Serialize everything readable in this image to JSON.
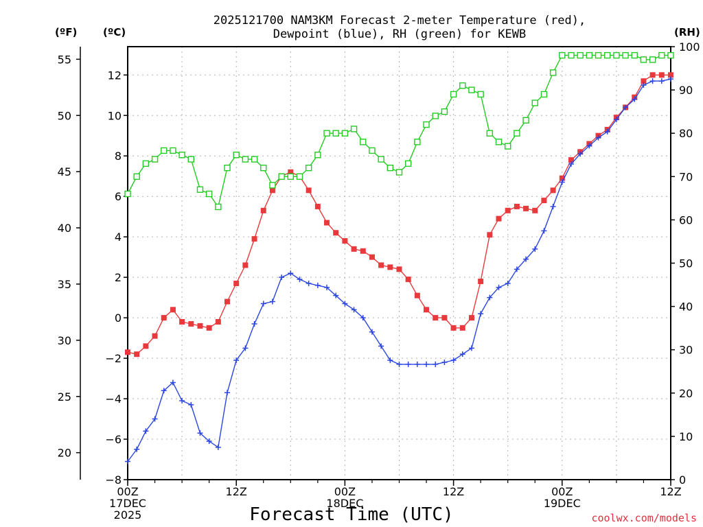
{
  "chart_data": {
    "type": "line",
    "title_line1": "2025121700 NAM3KM Forecast 2-meter Temperature (red),",
    "title_line2": "Dewpoint (blue), RH (green) for KEWB",
    "xlabel": "Forecast Time (UTC)",
    "credit": "coolwx.com/models",
    "units": {
      "fahrenheit": "(ºF)",
      "celsius": "(ºC)",
      "rh": "(RH)"
    },
    "ylim_c": [
      -8,
      13.4
    ],
    "ylim_rh": [
      0,
      100
    ],
    "x_range_hours": [
      0,
      60
    ],
    "x_ticks": [
      {
        "hour": 0,
        "l1": "00Z",
        "l2": "17DEC",
        "l3": "2025"
      },
      {
        "hour": 12,
        "l1": "12Z",
        "l2": "",
        "l3": ""
      },
      {
        "hour": 24,
        "l1": "00Z",
        "l2": "18DEC",
        "l3": ""
      },
      {
        "hour": 36,
        "l1": "12Z",
        "l2": "",
        "l3": ""
      },
      {
        "hour": 48,
        "l1": "00Z",
        "l2": "19DEC",
        "l3": ""
      },
      {
        "hour": 60,
        "l1": "12Z",
        "l2": "",
        "l3": ""
      }
    ],
    "y_ticks_c": [
      -8,
      -6,
      -4,
      -2,
      0,
      2,
      4,
      6,
      8,
      10,
      12
    ],
    "y_ticks_f": [
      20,
      25,
      30,
      35,
      40,
      45,
      50,
      55
    ],
    "y_ticks_rh": [
      0,
      10,
      20,
      30,
      40,
      50,
      60,
      70,
      80,
      90,
      100
    ],
    "colors": {
      "temperature": "#e8393c",
      "dewpoint": "#2b45e0",
      "rh": "#22cc22",
      "grid": "#b0b0b0"
    },
    "series": [
      {
        "name": "Temperature",
        "unit": "C",
        "x": [
          0,
          1,
          2,
          3,
          4,
          5,
          6,
          7,
          8,
          9,
          10,
          11,
          12,
          13,
          14,
          15,
          16,
          17,
          18,
          19,
          20,
          21,
          22,
          23,
          24,
          25,
          26,
          27,
          28,
          29,
          30,
          31,
          32,
          33,
          34,
          35,
          36,
          37,
          38,
          39,
          40,
          41,
          42,
          43,
          44,
          45,
          46,
          47,
          48,
          49,
          50,
          51,
          52,
          53,
          54,
          55,
          56,
          57,
          58,
          59,
          60
        ],
        "values": [
          -1.7,
          -1.8,
          -1.4,
          -0.9,
          0.0,
          0.4,
          -0.2,
          -0.3,
          -0.4,
          -0.5,
          -0.2,
          0.8,
          1.7,
          2.6,
          3.9,
          5.3,
          6.3,
          7.0,
          7.2,
          7.0,
          6.3,
          5.5,
          4.7,
          4.2,
          3.8,
          3.4,
          3.3,
          3.0,
          2.6,
          2.5,
          2.4,
          1.9,
          1.1,
          0.4,
          0.0,
          0.0,
          -0.5,
          -0.5,
          0.0,
          1.8,
          4.1,
          4.9,
          5.3,
          5.5,
          5.4,
          5.3,
          5.8,
          6.3,
          6.9,
          7.8,
          8.2,
          8.6,
          9.0,
          9.3,
          9.9,
          10.4,
          10.9,
          11.7,
          12.0,
          12.0,
          12.0
        ]
      },
      {
        "name": "Dewpoint",
        "unit": "C",
        "x": [
          0,
          1,
          2,
          3,
          4,
          5,
          6,
          7,
          8,
          9,
          10,
          11,
          12,
          13,
          14,
          15,
          16,
          17,
          18,
          19,
          20,
          21,
          22,
          23,
          24,
          25,
          26,
          27,
          28,
          29,
          30,
          31,
          32,
          33,
          34,
          35,
          36,
          37,
          38,
          39,
          40,
          41,
          42,
          43,
          44,
          45,
          46,
          47,
          48,
          49,
          50,
          51,
          52,
          53,
          54,
          55,
          56,
          57,
          58,
          59,
          60
        ],
        "values": [
          -7.1,
          -6.5,
          -5.6,
          -5.0,
          -3.6,
          -3.2,
          -4.1,
          -4.3,
          -5.7,
          -6.1,
          -6.4,
          -3.7,
          -2.1,
          -1.5,
          -0.3,
          0.7,
          0.8,
          2.0,
          2.2,
          1.9,
          1.7,
          1.6,
          1.5,
          1.1,
          0.7,
          0.4,
          0.0,
          -0.7,
          -1.4,
          -2.1,
          -2.3,
          -2.3,
          -2.3,
          -2.3,
          -2.3,
          -2.2,
          -2.1,
          -1.8,
          -1.5,
          0.2,
          1.0,
          1.5,
          1.7,
          2.4,
          2.9,
          3.4,
          4.3,
          5.5,
          6.7,
          7.6,
          8.1,
          8.5,
          8.9,
          9.2,
          9.8,
          10.4,
          10.8,
          11.5,
          11.7,
          11.7,
          11.8
        ]
      },
      {
        "name": "RH",
        "unit": "%",
        "x": [
          0,
          1,
          2,
          3,
          4,
          5,
          6,
          7,
          8,
          9,
          10,
          11,
          12,
          13,
          14,
          15,
          16,
          17,
          18,
          19,
          20,
          21,
          22,
          23,
          24,
          25,
          26,
          27,
          28,
          29,
          30,
          31,
          32,
          33,
          34,
          35,
          36,
          37,
          38,
          39,
          40,
          41,
          42,
          43,
          44,
          45,
          46,
          47,
          48,
          49,
          50,
          51,
          52,
          53,
          54,
          55,
          56,
          57,
          58,
          59,
          60
        ],
        "values": [
          66,
          70,
          73,
          74,
          76,
          76,
          75,
          74,
          67,
          66,
          63,
          72,
          75,
          74,
          74,
          72,
          68,
          70,
          70,
          70,
          72,
          75,
          80,
          80,
          80,
          81,
          78,
          76,
          74,
          72,
          71,
          73,
          78,
          82,
          84,
          85,
          89,
          91,
          90,
          89,
          80,
          78,
          77,
          80,
          83,
          87,
          89,
          94,
          98,
          98,
          98,
          98,
          98,
          98,
          98,
          98,
          98,
          97,
          97,
          98,
          98
        ]
      }
    ]
  }
}
